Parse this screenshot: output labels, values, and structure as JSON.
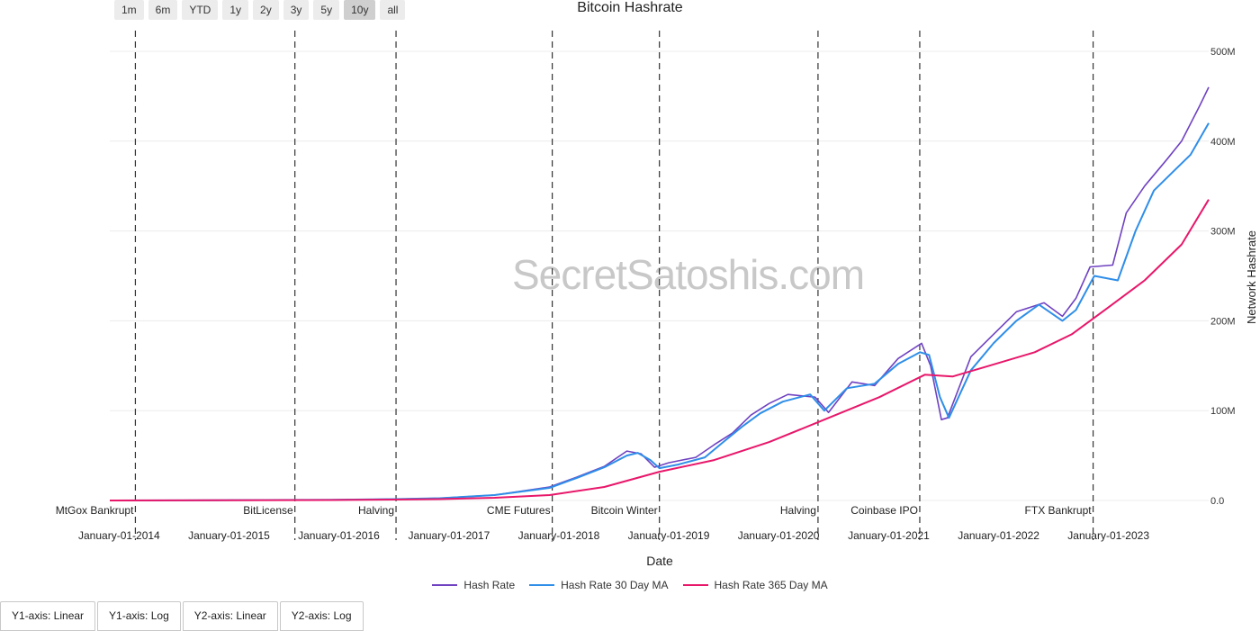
{
  "range_buttons": [
    {
      "label": "1m",
      "active": false
    },
    {
      "label": "6m",
      "active": false
    },
    {
      "label": "YTD",
      "active": false
    },
    {
      "label": "1y",
      "active": false
    },
    {
      "label": "2y",
      "active": false
    },
    {
      "label": "3y",
      "active": false
    },
    {
      "label": "5y",
      "active": false
    },
    {
      "label": "10y",
      "active": true
    },
    {
      "label": "all",
      "active": false
    }
  ],
  "watermark": "SecretSatoshis.com",
  "axis_buttons": [
    "Y1-axis: Linear",
    "Y1-axis: Log",
    "Y2-axis: Linear",
    "Y2-axis: Log"
  ],
  "chart_data": {
    "type": "line",
    "title": "Bitcoin Hashrate",
    "xlabel": "Date",
    "ylabel": "Network Hashrate",
    "x_range": [
      "2013-12-01",
      "2023-11-30"
    ],
    "ylim": [
      0,
      500000000
    ],
    "y_ticks": [
      0,
      100000000,
      200000000,
      300000000,
      400000000,
      500000000
    ],
    "y_tick_labels": [
      "0.0",
      "100M",
      "200M",
      "300M",
      "400M",
      "500M"
    ],
    "x_ticks": [
      "2014-01-01",
      "2015-01-01",
      "2016-01-01",
      "2017-01-01",
      "2018-01-01",
      "2019-01-01",
      "2020-01-01",
      "2021-01-01",
      "2022-01-01",
      "2023-01-01"
    ],
    "x_tick_labels": [
      "January-01-2014",
      "January-01-2015",
      "January-01-2016",
      "January-01-2017",
      "January-01-2018",
      "January-01-2019",
      "January-01-2020",
      "January-01-2021",
      "January-01-2022",
      "January-01-2023"
    ],
    "grid": true,
    "legend": "bottom-center",
    "events": [
      {
        "date": "2014-02-24",
        "label": "MtGox Bankrupt"
      },
      {
        "date": "2015-08-08",
        "label": "BitLicense"
      },
      {
        "date": "2016-07-09",
        "label": "Halving"
      },
      {
        "date": "2017-12-10",
        "label": "CME Futures"
      },
      {
        "date": "2018-12-01",
        "label": "Bitcoin Winter"
      },
      {
        "date": "2020-05-11",
        "label": "Halving"
      },
      {
        "date": "2021-04-14",
        "label": "Coinbase IPO"
      },
      {
        "date": "2022-11-11",
        "label": "FTX Bankrupt"
      }
    ],
    "series": [
      {
        "name": "Hash Rate",
        "color": "#6f42c1",
        "points": [
          [
            "2013-12-01",
            0.003
          ],
          [
            "2014-12-01",
            0.3
          ],
          [
            "2015-12-01",
            0.7
          ],
          [
            "2016-07-01",
            1.5
          ],
          [
            "2016-12-01",
            2.5
          ],
          [
            "2017-06-01",
            6
          ],
          [
            "2017-12-01",
            15
          ],
          [
            "2018-03-01",
            26
          ],
          [
            "2018-06-01",
            38
          ],
          [
            "2018-08-15",
            55
          ],
          [
            "2018-10-01",
            52
          ],
          [
            "2018-11-15",
            37
          ],
          [
            "2019-01-01",
            42
          ],
          [
            "2019-04-01",
            48
          ],
          [
            "2019-06-01",
            62
          ],
          [
            "2019-08-01",
            75
          ],
          [
            "2019-10-01",
            95
          ],
          [
            "2019-12-01",
            108
          ],
          [
            "2020-02-01",
            118
          ],
          [
            "2020-05-01",
            115
          ],
          [
            "2020-06-15",
            98
          ],
          [
            "2020-09-01",
            132
          ],
          [
            "2020-11-15",
            128
          ],
          [
            "2021-02-01",
            158
          ],
          [
            "2021-04-20",
            175
          ],
          [
            "2021-05-20",
            150
          ],
          [
            "2021-06-25",
            90
          ],
          [
            "2021-07-15",
            92
          ],
          [
            "2021-10-01",
            160
          ],
          [
            "2021-12-15",
            185
          ],
          [
            "2022-03-01",
            210
          ],
          [
            "2022-06-01",
            220
          ],
          [
            "2022-08-01",
            205
          ],
          [
            "2022-09-15",
            225
          ],
          [
            "2022-11-01",
            260
          ],
          [
            "2023-01-15",
            262
          ],
          [
            "2023-03-01",
            320
          ],
          [
            "2023-05-01",
            350
          ],
          [
            "2023-07-15",
            380
          ],
          [
            "2023-09-01",
            400
          ],
          [
            "2023-11-01",
            440
          ],
          [
            "2023-11-30",
            460
          ]
        ]
      },
      {
        "name": "Hash Rate 30 Day MA",
        "color": "#2f8ee8",
        "points": [
          [
            "2013-12-01",
            0.003
          ],
          [
            "2014-12-01",
            0.3
          ],
          [
            "2015-12-01",
            0.7
          ],
          [
            "2016-07-01",
            1.5
          ],
          [
            "2016-12-01",
            2.5
          ],
          [
            "2017-06-01",
            6
          ],
          [
            "2017-12-01",
            14
          ],
          [
            "2018-03-01",
            25
          ],
          [
            "2018-06-01",
            37
          ],
          [
            "2018-08-15",
            50
          ],
          [
            "2018-09-20",
            53
          ],
          [
            "2018-11-01",
            45
          ],
          [
            "2018-12-01",
            36
          ],
          [
            "2019-02-01",
            40
          ],
          [
            "2019-05-01",
            48
          ],
          [
            "2019-07-01",
            65
          ],
          [
            "2019-09-01",
            82
          ],
          [
            "2019-11-01",
            97
          ],
          [
            "2020-01-15",
            110
          ],
          [
            "2020-04-15",
            118
          ],
          [
            "2020-06-01",
            100
          ],
          [
            "2020-08-15",
            125
          ],
          [
            "2020-11-15",
            130
          ],
          [
            "2021-02-01",
            152
          ],
          [
            "2021-04-15",
            165
          ],
          [
            "2021-05-15",
            162
          ],
          [
            "2021-06-20",
            115
          ],
          [
            "2021-07-20",
            92
          ],
          [
            "2021-10-01",
            145
          ],
          [
            "2021-12-15",
            175
          ],
          [
            "2022-03-01",
            200
          ],
          [
            "2022-05-15",
            218
          ],
          [
            "2022-08-01",
            200
          ],
          [
            "2022-09-15",
            212
          ],
          [
            "2022-11-15",
            250
          ],
          [
            "2023-02-01",
            245
          ],
          [
            "2023-04-01",
            300
          ],
          [
            "2023-06-01",
            345
          ],
          [
            "2023-08-01",
            365
          ],
          [
            "2023-10-01",
            385
          ],
          [
            "2023-11-30",
            420
          ]
        ]
      },
      {
        "name": "Hash Rate 365 Day MA",
        "color": "#e8176a",
        "points": [
          [
            "2013-12-01",
            0.001
          ],
          [
            "2014-12-01",
            0.2
          ],
          [
            "2015-12-01",
            0.5
          ],
          [
            "2016-07-01",
            1.0
          ],
          [
            "2016-12-01",
            1.5
          ],
          [
            "2017-06-01",
            3
          ],
          [
            "2017-12-01",
            6
          ],
          [
            "2018-06-01",
            15
          ],
          [
            "2018-12-01",
            32
          ],
          [
            "2019-06-01",
            45
          ],
          [
            "2019-12-01",
            65
          ],
          [
            "2020-06-01",
            90
          ],
          [
            "2020-12-01",
            115
          ],
          [
            "2021-05-01",
            140
          ],
          [
            "2021-08-01",
            138
          ],
          [
            "2021-12-01",
            150
          ],
          [
            "2022-05-01",
            165
          ],
          [
            "2022-09-01",
            185
          ],
          [
            "2023-01-01",
            215
          ],
          [
            "2023-05-01",
            245
          ],
          [
            "2023-09-01",
            285
          ],
          [
            "2023-11-30",
            335
          ]
        ]
      }
    ]
  }
}
